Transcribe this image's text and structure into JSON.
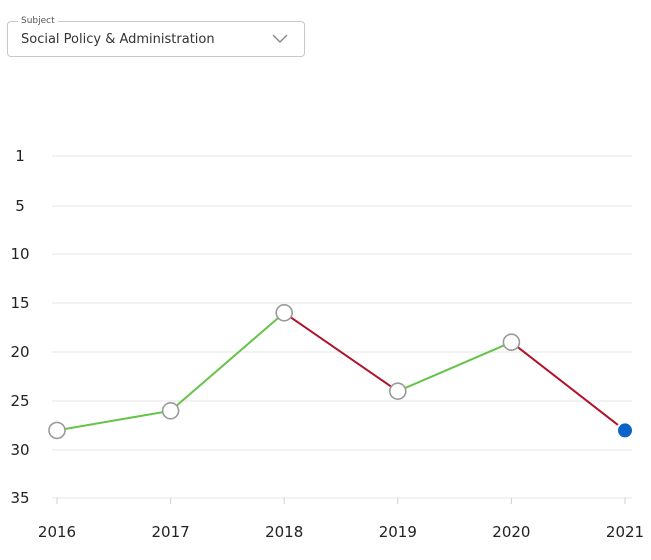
{
  "subject_select": {
    "legend": "Subject",
    "value": "Social Policy & Administration",
    "chevron_icon": "chevron-down-icon"
  },
  "colors": {
    "rise": "#66c34a",
    "fall": "#b0112b",
    "marker_fill": "#ffffff",
    "marker_stroke": "#9a9a9a",
    "current_marker": "#0a63c9",
    "grid": "#e6e6e6"
  },
  "chart_data": {
    "type": "line",
    "title": "",
    "xlabel": "",
    "ylabel": "",
    "y_inverted": true,
    "grid": true,
    "x": [
      "2016",
      "2017",
      "2018",
      "2019",
      "2020",
      "2021"
    ],
    "series": [
      {
        "values": [
          28,
          26,
          16,
          24,
          19,
          28
        ]
      }
    ],
    "y_ticks": [
      1,
      5,
      10,
      15,
      20,
      25,
      30,
      35
    ],
    "ylim": [
      1,
      35
    ]
  }
}
